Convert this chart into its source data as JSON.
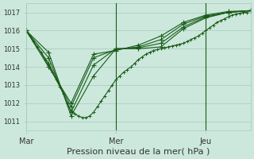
{
  "title": "Pression niveau de la mer( hPa )",
  "background_color": "#cce8dc",
  "grid_color": "#aac8bc",
  "line_color": "#1a5c1a",
  "ylim": [
    1010.5,
    1017.5
  ],
  "yticks": [
    1011,
    1012,
    1013,
    1014,
    1015,
    1016,
    1017
  ],
  "xlim": [
    0,
    120
  ],
  "xlabel_mar": 0,
  "xlabel_mer": 48,
  "xlabel_jeu": 96,
  "series0": {
    "x": [
      0,
      2,
      4,
      6,
      8,
      10,
      12,
      14,
      16,
      18,
      20,
      22,
      24,
      26,
      28,
      30,
      32,
      34,
      36,
      38,
      40,
      42,
      44,
      46,
      48,
      50,
      52,
      54,
      56,
      58,
      60,
      62,
      64,
      66,
      68,
      70,
      72,
      74,
      76,
      78,
      80,
      82,
      84,
      86,
      88,
      90,
      92,
      94,
      96,
      98,
      100,
      102,
      104,
      106,
      108,
      110,
      112,
      114,
      116,
      118,
      120
    ],
    "y": [
      1016.0,
      1015.7,
      1015.4,
      1015.1,
      1014.8,
      1014.4,
      1014.1,
      1013.7,
      1013.3,
      1012.9,
      1012.5,
      1012.0,
      1011.6,
      1011.4,
      1011.3,
      1011.2,
      1011.2,
      1011.3,
      1011.5,
      1011.8,
      1012.1,
      1012.4,
      1012.7,
      1013.0,
      1013.3,
      1013.5,
      1013.7,
      1013.85,
      1014.0,
      1014.2,
      1014.4,
      1014.55,
      1014.7,
      1014.8,
      1014.9,
      1014.95,
      1015.0,
      1015.05,
      1015.1,
      1015.15,
      1015.2,
      1015.25,
      1015.3,
      1015.4,
      1015.5,
      1015.6,
      1015.7,
      1015.85,
      1016.0,
      1016.15,
      1016.3,
      1016.45,
      1016.55,
      1016.65,
      1016.75,
      1016.85,
      1016.9,
      1016.95,
      1017.0,
      1017.0,
      1017.1
    ]
  },
  "series_sparse": [
    {
      "x": [
        0,
        12,
        24,
        36,
        48,
        60,
        72,
        84,
        96,
        108,
        120
      ],
      "y": [
        1016.0,
        1014.8,
        1011.3,
        1013.5,
        1015.0,
        1015.0,
        1015.1,
        1016.1,
        1016.7,
        1017.0,
        1017.1
      ]
    },
    {
      "x": [
        0,
        12,
        24,
        36,
        48,
        60,
        72,
        84,
        96,
        108,
        120
      ],
      "y": [
        1016.0,
        1014.5,
        1011.5,
        1014.1,
        1015.0,
        1015.05,
        1015.3,
        1016.2,
        1016.75,
        1017.0,
        1017.1
      ]
    },
    {
      "x": [
        0,
        12,
        24,
        36,
        48,
        60,
        72,
        84,
        96,
        108,
        120
      ],
      "y": [
        1016.0,
        1014.2,
        1011.8,
        1014.5,
        1014.95,
        1015.1,
        1015.5,
        1016.35,
        1016.8,
        1017.0,
        1017.1
      ]
    },
    {
      "x": [
        0,
        12,
        24,
        36,
        48,
        60,
        72,
        84,
        96,
        108,
        120
      ],
      "y": [
        1016.0,
        1014.0,
        1012.0,
        1014.7,
        1014.9,
        1015.2,
        1015.7,
        1016.45,
        1016.85,
        1017.05,
        1017.1
      ]
    }
  ],
  "vline_x": [
    48,
    96
  ],
  "ytick_fontsize": 6,
  "xtick_fontsize": 7,
  "xlabel_fontsize": 8,
  "lw": 0.8,
  "marker_size_dense": 2.5,
  "marker_size_sparse": 4
}
